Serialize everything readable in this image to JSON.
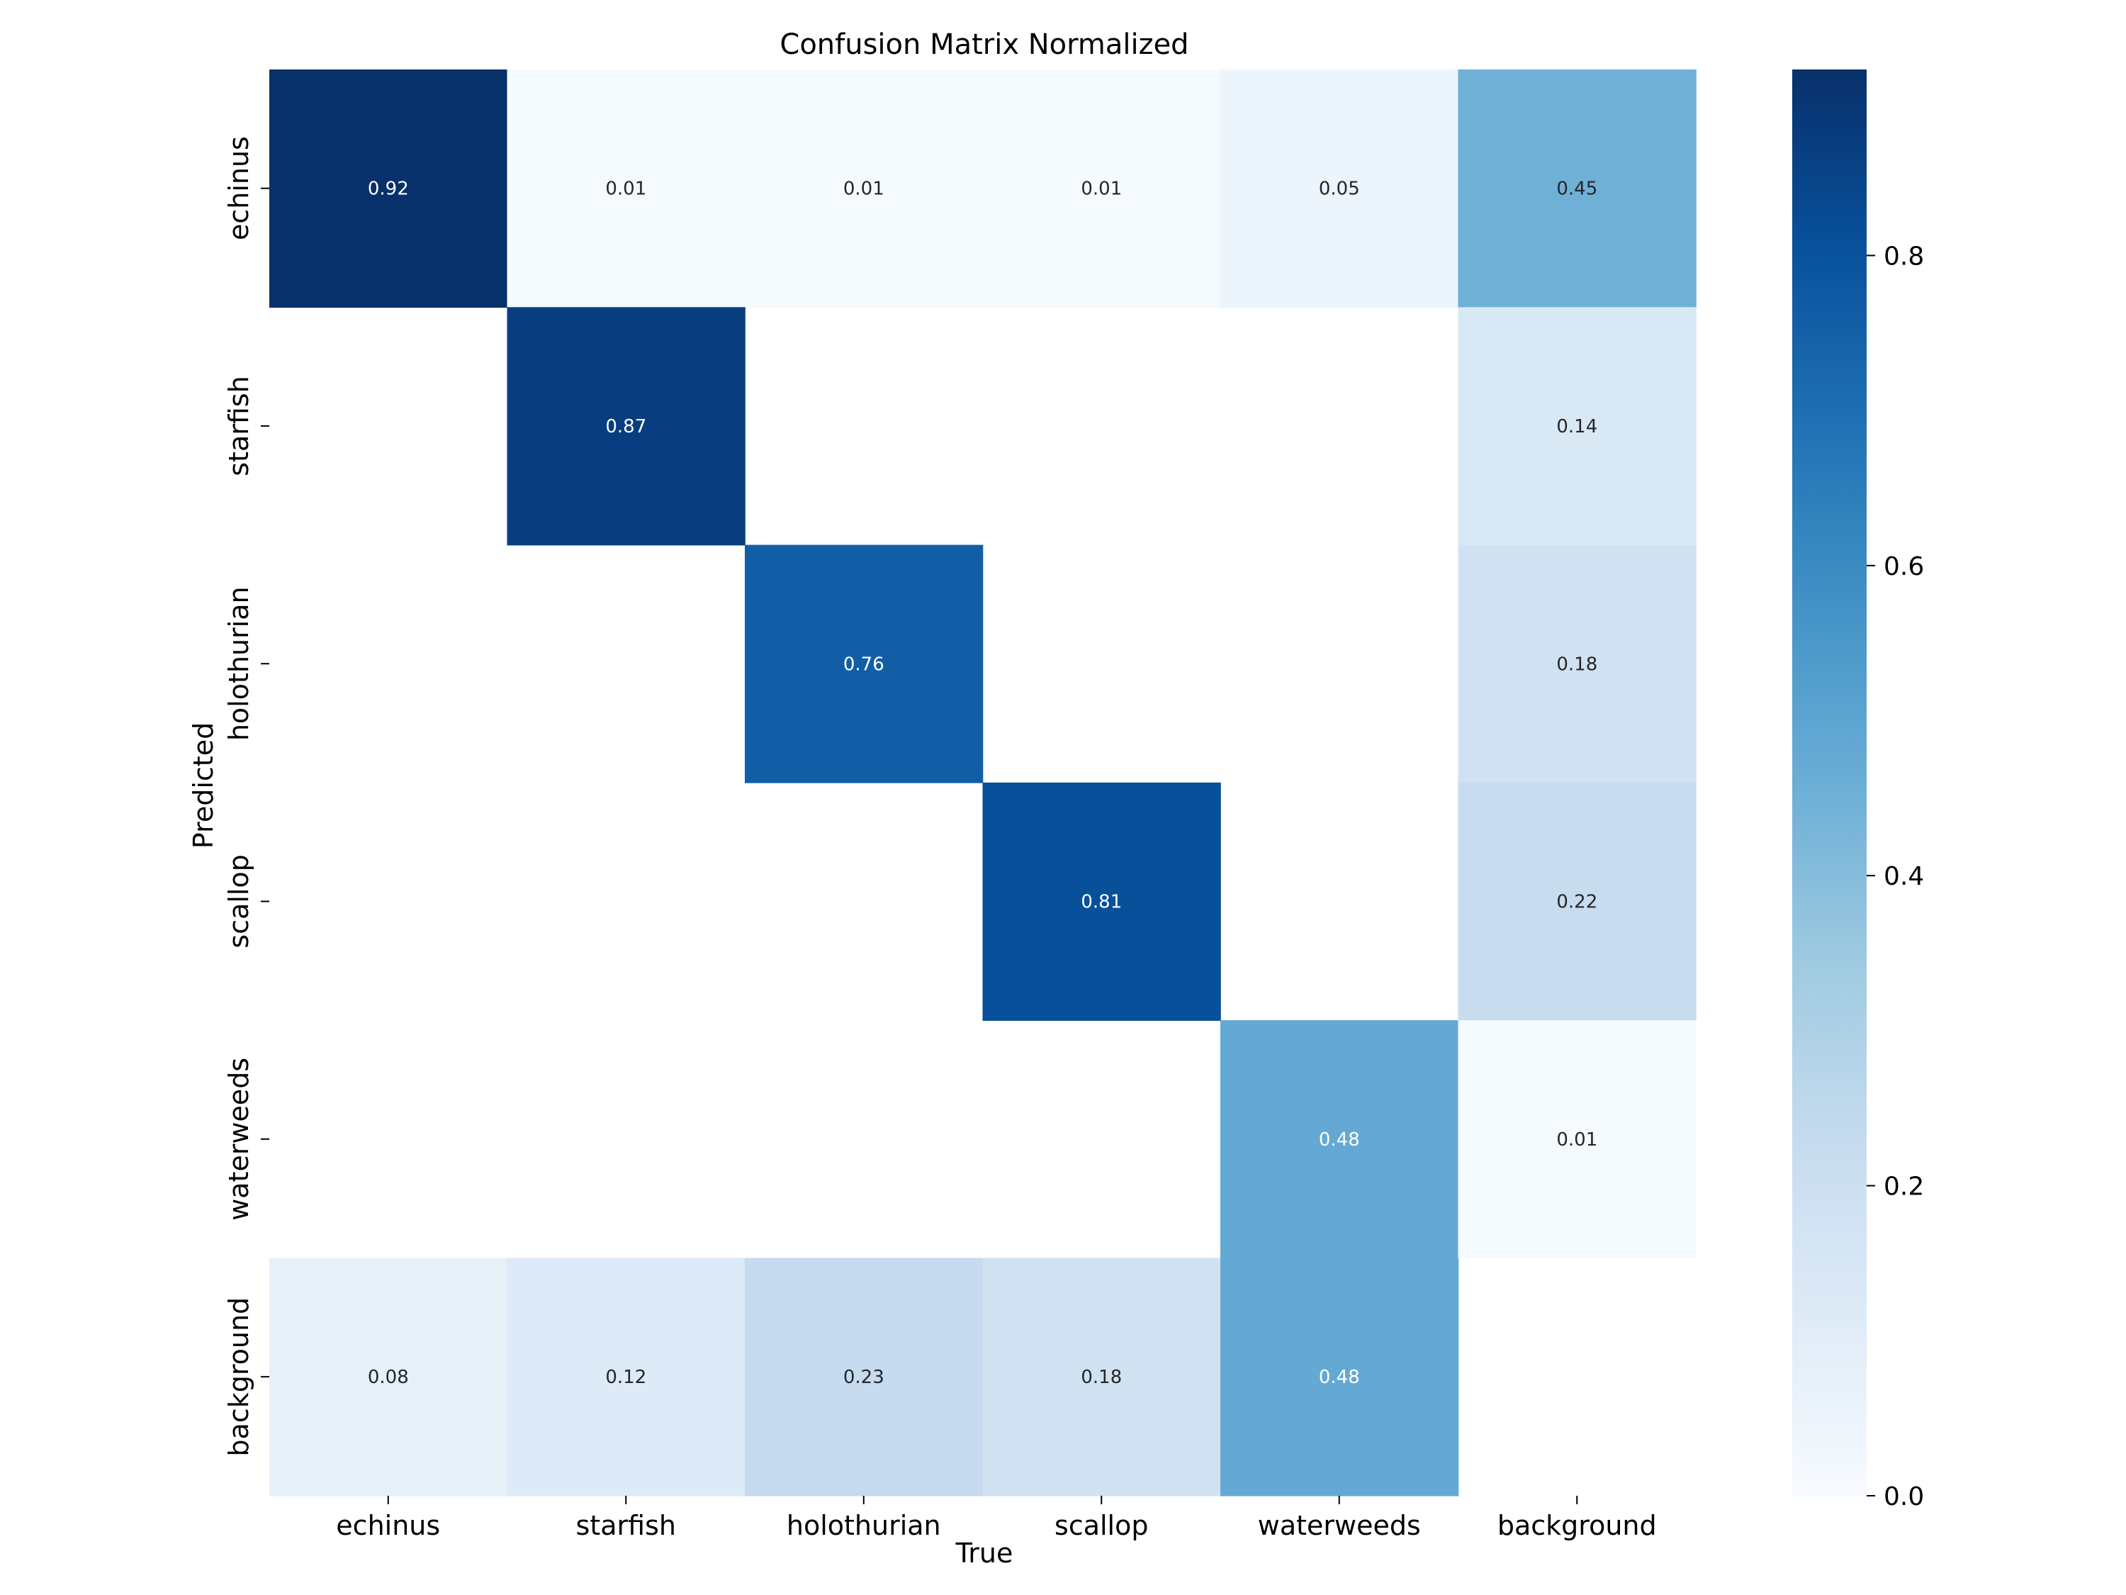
{
  "chart_data": {
    "type": "heatmap",
    "title": "Confusion Matrix Normalized",
    "xlabel": "True",
    "ylabel": "Predicted",
    "x_categories": [
      "echinus",
      "starfish",
      "holothurian",
      "scallop",
      "waterweeds",
      "background"
    ],
    "y_categories": [
      "echinus",
      "starfish",
      "holothurian",
      "scallop",
      "waterweeds",
      "background"
    ],
    "values": [
      [
        0.92,
        0.01,
        0.01,
        0.01,
        0.05,
        0.45
      ],
      [
        null,
        0.87,
        null,
        null,
        null,
        0.14
      ],
      [
        null,
        null,
        0.76,
        null,
        null,
        0.18
      ],
      [
        null,
        null,
        null,
        0.81,
        null,
        0.22
      ],
      [
        null,
        null,
        null,
        null,
        0.48,
        0.01
      ],
      [
        0.08,
        0.12,
        0.23,
        0.18,
        0.48,
        null
      ]
    ],
    "colormap": "Blues",
    "color_range": [
      0,
      0.92
    ],
    "colorbar_ticks": [
      "0.0",
      "0.2",
      "0.4",
      "0.6",
      "0.8"
    ],
    "colorbar_tick_values": [
      0,
      0.2,
      0.4,
      0.6,
      0.8
    ],
    "colors": {
      "light_text": "#ffffff",
      "dark_text": "#262626",
      "tick": "#000000"
    }
  }
}
